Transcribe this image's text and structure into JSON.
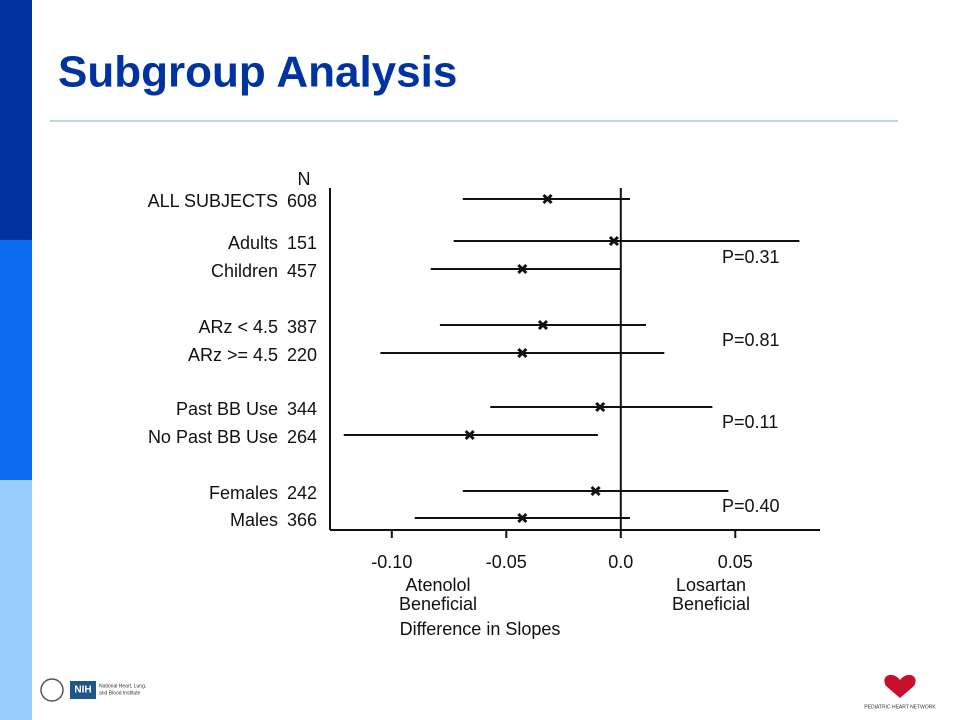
{
  "chart_data": {
    "type": "forest",
    "title": "Subgroup Analysis",
    "n_header": "N",
    "categories": [
      "ALL SUBJECTS",
      "Adults",
      "Children",
      "ARz < 4.5",
      "ARz >= 4.5",
      "Past BB Use",
      "No Past BB Use",
      "Females",
      "Males"
    ],
    "n": [
      608,
      151,
      457,
      387,
      220,
      344,
      264,
      242,
      366
    ],
    "values": [
      -0.032,
      -0.003,
      -0.043,
      -0.034,
      -0.043,
      -0.009,
      -0.066,
      -0.011,
      -0.043
    ],
    "lower": [
      -0.069,
      -0.073,
      -0.083,
      -0.079,
      -0.105,
      -0.057,
      -0.121,
      -0.069,
      -0.09
    ],
    "upper": [
      0.004,
      0.078,
      0.0,
      0.011,
      0.019,
      0.04,
      -0.01,
      0.047,
      0.004
    ],
    "color": "#111111",
    "xlim": [
      -0.127,
      0.087
    ],
    "xticks": [
      {
        "value": -0.1,
        "label": "-0.10"
      },
      -0.05,
      {
        "value": 0,
        "label": "0.0"
      },
      0.05
    ],
    "reference_line": 0,
    "annotations": [
      "P=0.31",
      "P=0.81",
      "P=0.11",
      "P=0.40"
    ],
    "left_note": [
      "Atenolol",
      "Beneficial"
    ],
    "right_note": [
      "Losartan",
      "Beneficial"
    ],
    "xlabel": "Difference in Slopes"
  },
  "footer": {
    "left_logo": "NIH",
    "left_text": [
      "National Heart, Lung,",
      "and Blood Institute"
    ],
    "right_logo": "PEDIATRIC HEART NETWORK"
  }
}
